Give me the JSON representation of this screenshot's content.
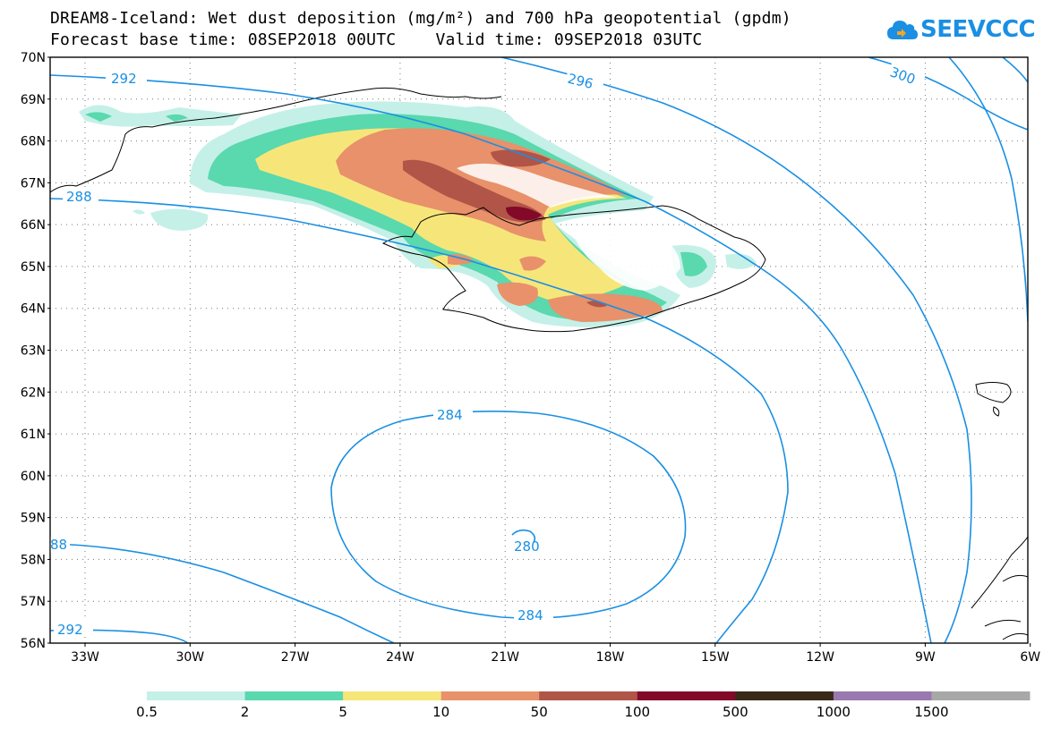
{
  "title": {
    "line1": "DREAM8-Iceland: Wet dust deposition (mg/m²) and 700 hPa geopotential (gpdm)",
    "line2": "Forecast base time: 08SEP2018 00UTC    Valid time: 09SEP2018 03UTC"
  },
  "logo": {
    "text": "SEEVCCC",
    "icon": "cloud-logo-icon",
    "color": "#1a8fe3"
  },
  "map": {
    "lat_labels": [
      "70N",
      "69N",
      "68N",
      "67N",
      "66N",
      "65N",
      "64N",
      "63N",
      "62N",
      "61N",
      "60N",
      "59N",
      "58N",
      "57N",
      "56N"
    ],
    "lon_labels": [
      "33W",
      "30W",
      "27W",
      "24W",
      "21W",
      "18W",
      "15W",
      "12W",
      "9W",
      "6W"
    ],
    "contour_color": "#1a8fe3",
    "contour_labels": [
      "292",
      "296",
      "300",
      "288",
      "284",
      "280",
      "284",
      "88",
      "292"
    ]
  },
  "colorbar": {
    "labels": [
      "0.5",
      "2",
      "5",
      "10",
      "50",
      "100",
      "500",
      "1000",
      "1500"
    ],
    "colors": [
      "#c4f0e8",
      "#5ad8ae",
      "#f6e67a",
      "#e8916a",
      "#b05548",
      "#820a28",
      "#3a2a1a",
      "#9a78b0",
      "#a8a8a8"
    ]
  }
}
